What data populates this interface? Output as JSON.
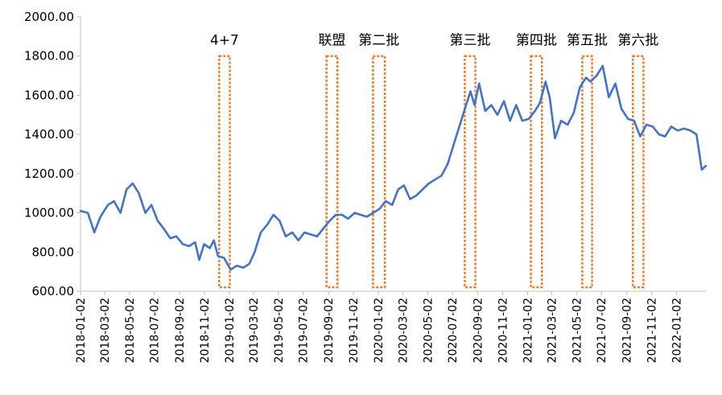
{
  "chart_data": {
    "type": "line",
    "title": "",
    "xlabel": "",
    "ylabel": "",
    "ylim": [
      600,
      2000
    ],
    "yticks": [
      "600.00",
      "800.00",
      "1000.00",
      "1200.00",
      "1400.00",
      "1600.00",
      "1800.00",
      "2000.00"
    ],
    "x_range": [
      "2018-01-02",
      "2022-03-15"
    ],
    "xticks": [
      "2018-01-02",
      "2018-03-02",
      "2018-05-02",
      "2018-07-02",
      "2018-09-02",
      "2018-11-02",
      "2019-01-02",
      "2019-03-02",
      "2019-05-02",
      "2019-07-02",
      "2019-09-02",
      "2019-11-02",
      "2020-01-02",
      "2020-03-02",
      "2020-05-02",
      "2020-07-02",
      "2020-09-02",
      "2020-11-02",
      "2021-01-02",
      "2021-03-02",
      "2021-05-02",
      "2021-07-02",
      "2021-09-02",
      "2021-11-02",
      "2022-01-02"
    ],
    "grid": false,
    "legend": "none",
    "colors": {
      "line": "#4472C4",
      "box": "#ED7D31",
      "axis": "#BFBFBF"
    },
    "series": [
      {
        "x": [
          "2018-01-02",
          "2018-01-20",
          "2018-02-05",
          "2018-02-20",
          "2018-03-10",
          "2018-03-25",
          "2018-04-10",
          "2018-04-25",
          "2018-05-10",
          "2018-05-25",
          "2018-06-10",
          "2018-06-25",
          "2018-07-10",
          "2018-07-25",
          "2018-08-10",
          "2018-08-25",
          "2018-09-10",
          "2018-09-25",
          "2018-10-10",
          "2018-10-20",
          "2018-11-01",
          "2018-11-15",
          "2018-11-25",
          "2018-12-05",
          "2018-12-20",
          "2019-01-05",
          "2019-01-20",
          "2019-02-05",
          "2019-02-20",
          "2019-03-05",
          "2019-03-20",
          "2019-04-05",
          "2019-04-20",
          "2019-05-05",
          "2019-05-20",
          "2019-06-05",
          "2019-06-20",
          "2019-07-05",
          "2019-07-20",
          "2019-08-05",
          "2019-08-20",
          "2019-09-05",
          "2019-09-20",
          "2019-10-05",
          "2019-10-20",
          "2019-11-05",
          "2019-11-20",
          "2019-12-05",
          "2019-12-20",
          "2020-01-05",
          "2020-01-20",
          "2020-02-05",
          "2020-02-20",
          "2020-03-05",
          "2020-03-20",
          "2020-04-05",
          "2020-04-20",
          "2020-05-05",
          "2020-05-20",
          "2020-06-05",
          "2020-06-20",
          "2020-07-05",
          "2020-07-20",
          "2020-08-01",
          "2020-08-15",
          "2020-08-25",
          "2020-09-05",
          "2020-09-20",
          "2020-10-05",
          "2020-10-20",
          "2020-11-05",
          "2020-11-20",
          "2020-12-05",
          "2020-12-20",
          "2021-01-05",
          "2021-01-20",
          "2021-02-01",
          "2021-02-15",
          "2021-02-25",
          "2021-03-10",
          "2021-03-25",
          "2021-04-10",
          "2021-04-25",
          "2021-05-10",
          "2021-05-25",
          "2021-06-05",
          "2021-06-20",
          "2021-07-05",
          "2021-07-20",
          "2021-08-05",
          "2021-08-20",
          "2021-09-05",
          "2021-09-20",
          "2021-10-05",
          "2021-10-20",
          "2021-11-05",
          "2021-11-20",
          "2021-12-05",
          "2021-12-20",
          "2022-01-05",
          "2022-01-20",
          "2022-02-05",
          "2022-02-20",
          "2022-03-05",
          "2022-03-15"
        ],
        "values": [
          1010,
          1000,
          900,
          980,
          1040,
          1060,
          1000,
          1120,
          1150,
          1100,
          1000,
          1040,
          960,
          920,
          870,
          880,
          840,
          830,
          850,
          760,
          840,
          820,
          860,
          780,
          770,
          710,
          730,
          720,
          740,
          800,
          900,
          940,
          990,
          960,
          880,
          900,
          860,
          900,
          890,
          880,
          920,
          960,
          990,
          990,
          970,
          1000,
          990,
          980,
          1000,
          1020,
          1060,
          1040,
          1120,
          1140,
          1070,
          1090,
          1120,
          1150,
          1170,
          1190,
          1250,
          1350,
          1450,
          1530,
          1620,
          1550,
          1660,
          1520,
          1550,
          1500,
          1570,
          1470,
          1550,
          1470,
          1480,
          1520,
          1560,
          1670,
          1590,
          1380,
          1470,
          1450,
          1510,
          1640,
          1690,
          1670,
          1700,
          1750,
          1590,
          1660,
          1530,
          1480,
          1470,
          1390,
          1450,
          1440,
          1400,
          1390,
          1440,
          1420,
          1430,
          1420,
          1400,
          1220,
          1240
        ]
      }
    ],
    "annotations": [
      {
        "label": "4+7",
        "x_start": "2018-12-08",
        "x_end": "2019-01-03",
        "y_low": 620,
        "y_high": 1800
      },
      {
        "label": "联盟",
        "x_start": "2019-08-28",
        "x_end": "2019-09-24",
        "y_low": 620,
        "y_high": 1800
      },
      {
        "label": "第二批",
        "x_start": "2019-12-20",
        "x_end": "2020-01-18",
        "y_low": 620,
        "y_high": 1800
      },
      {
        "label": "第三批",
        "x_start": "2020-08-01",
        "x_end": "2020-08-27",
        "y_low": 620,
        "y_high": 1800
      },
      {
        "label": "第四批",
        "x_start": "2021-01-10",
        "x_end": "2021-02-06",
        "y_low": 620,
        "y_high": 1800
      },
      {
        "label": "第五批",
        "x_start": "2021-05-16",
        "x_end": "2021-06-09",
        "y_low": 620,
        "y_high": 1800
      },
      {
        "label": "第六批",
        "x_start": "2021-09-17",
        "x_end": "2021-10-13",
        "y_low": 620,
        "y_high": 1800
      }
    ]
  }
}
